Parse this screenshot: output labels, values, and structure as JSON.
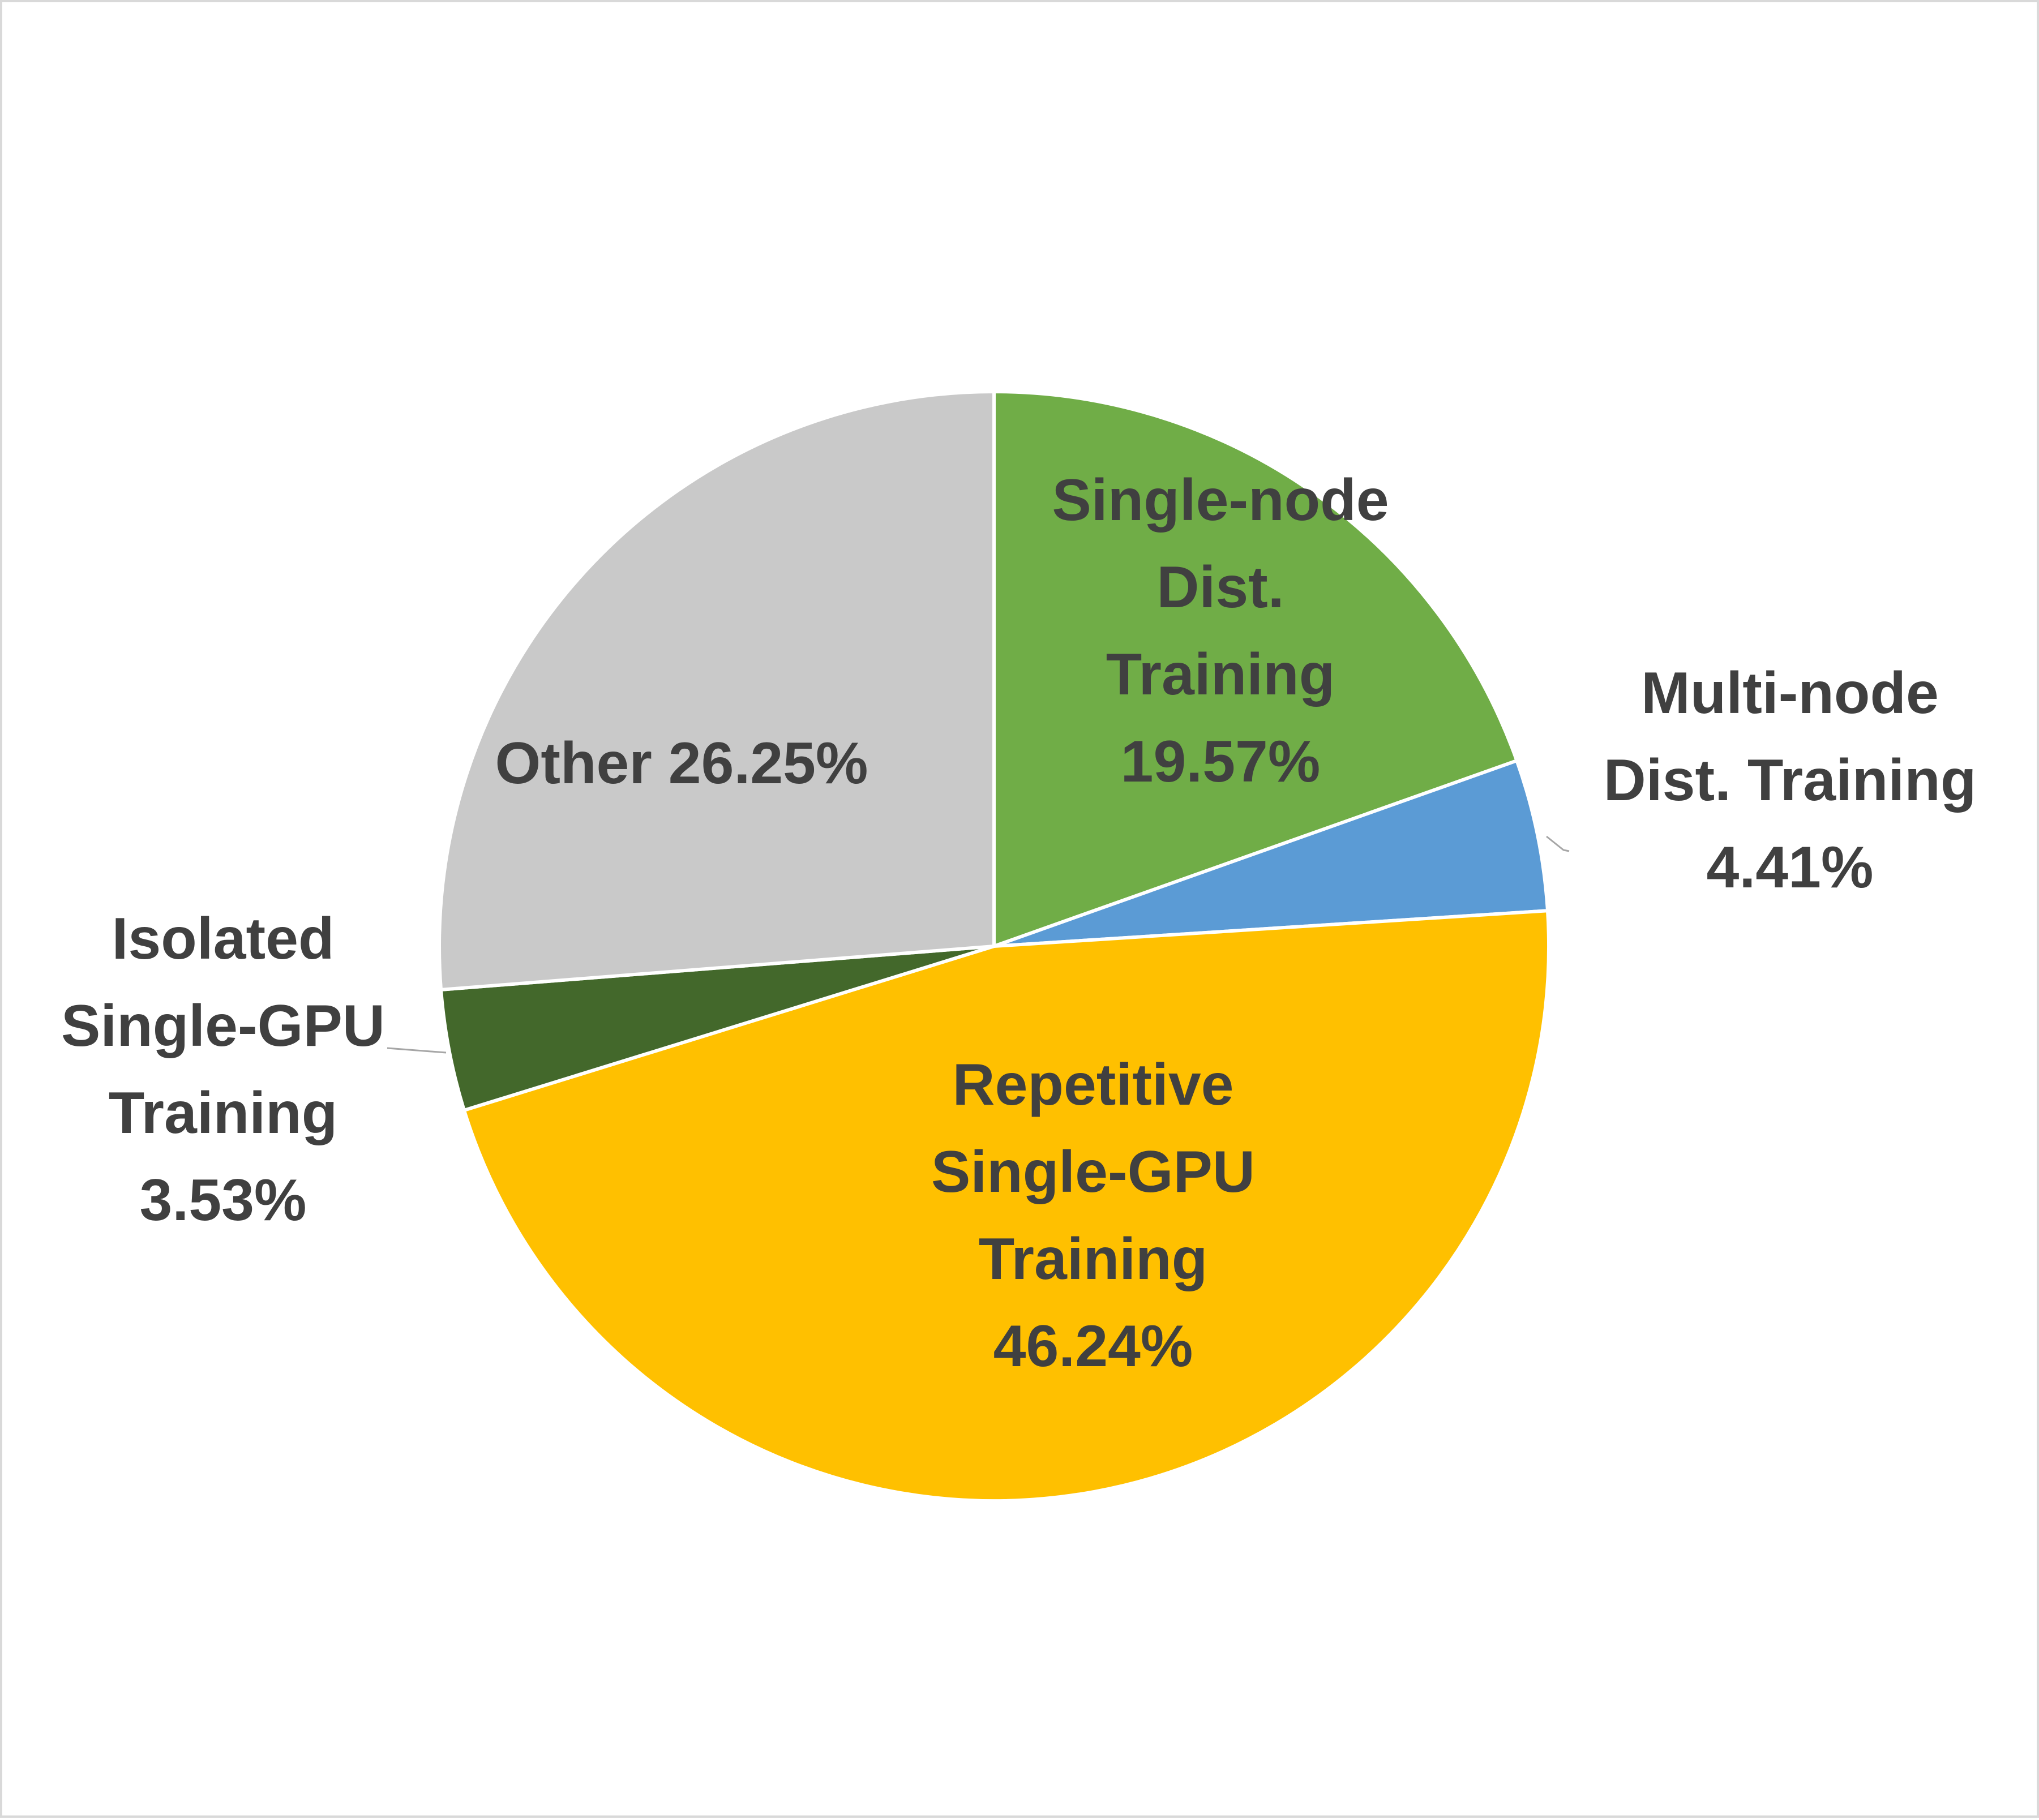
{
  "chart_data": {
    "type": "pie",
    "title": "",
    "slices": [
      {
        "name": "Single-node Dist. Training",
        "value": 19.57,
        "color": "#70ad47",
        "label_lines": [
          "Single-node",
          "Dist.",
          "Training",
          "19.57%"
        ]
      },
      {
        "name": "Multi-node Dist. Training",
        "value": 4.41,
        "color": "#5b9bd5",
        "label_lines": [
          "Multi-node",
          "Dist. Training",
          "4.41%"
        ]
      },
      {
        "name": "Repetitive Single-GPU Training",
        "value": 46.24,
        "color": "#ffc000",
        "label_lines": [
          "Repetitive",
          "Single-GPU",
          "Training",
          "46.24%"
        ]
      },
      {
        "name": "Isolated Single-GPU Training",
        "value": 3.53,
        "color": "#43682b",
        "label_lines": [
          "Isolated",
          "Single-GPU",
          "Training",
          "3.53%"
        ]
      },
      {
        "name": "Other",
        "value": 26.25,
        "color": "#c9c9c9",
        "label_lines": [
          "Other 26.25%"
        ]
      }
    ],
    "label_color": "#404040",
    "slice_border_color": "#ffffff",
    "leader_line_color": "#a6a6a6",
    "legend": "none",
    "start_angle": "12 o'clock",
    "direction": "clockwise"
  }
}
